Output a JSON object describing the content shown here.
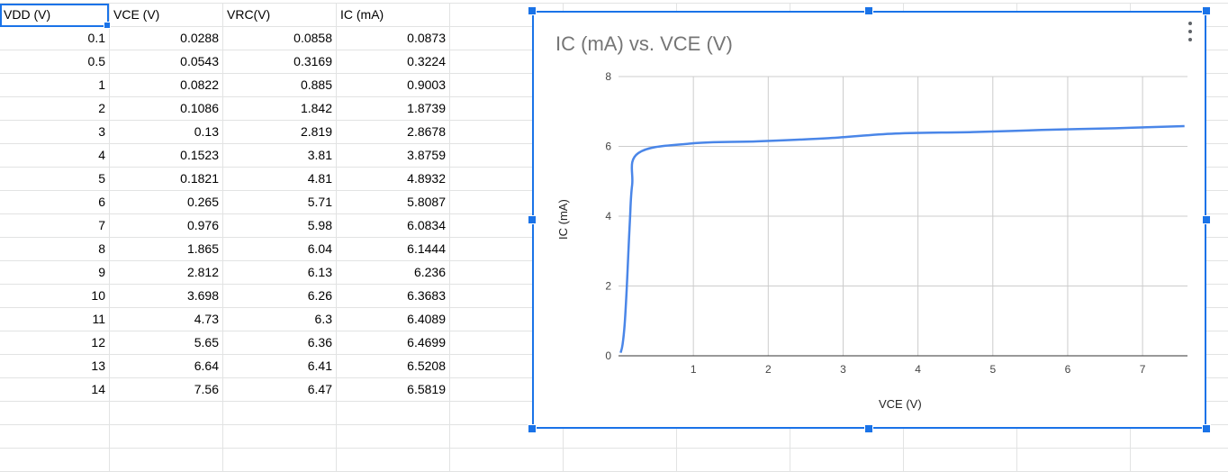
{
  "sheet": {
    "headers": [
      "VDD (V)",
      "VCE (V)",
      "VRC(V)",
      "IC (mA)"
    ],
    "rows": [
      [
        "0.1",
        "0.0288",
        "0.0858",
        "0.0873"
      ],
      [
        "0.5",
        "0.0543",
        "0.3169",
        "0.3224"
      ],
      [
        "1",
        "0.0822",
        "0.885",
        "0.9003"
      ],
      [
        "2",
        "0.1086",
        "1.842",
        "1.8739"
      ],
      [
        "3",
        "0.13",
        "2.819",
        "2.8678"
      ],
      [
        "4",
        "0.1523",
        "3.81",
        "3.8759"
      ],
      [
        "5",
        "0.1821",
        "4.81",
        "4.8932"
      ],
      [
        "6",
        "0.265",
        "5.71",
        "5.8087"
      ],
      [
        "7",
        "0.976",
        "5.98",
        "6.0834"
      ],
      [
        "8",
        "1.865",
        "6.04",
        "6.1444"
      ],
      [
        "9",
        "2.812",
        "6.13",
        "6.236"
      ],
      [
        "10",
        "3.698",
        "6.26",
        "6.3683"
      ],
      [
        "11",
        "4.73",
        "6.3",
        "6.4089"
      ],
      [
        "12",
        "5.65",
        "6.36",
        "6.4699"
      ],
      [
        "13",
        "6.64",
        "6.41",
        "6.5208"
      ],
      [
        "14",
        "7.56",
        "6.47",
        "6.5819"
      ]
    ]
  },
  "colors": {
    "selection": "#1a73e8",
    "series": "#4a86e8",
    "gridline": "#cccccc",
    "title": "#757575"
  },
  "chart_data": {
    "type": "line",
    "title": "IC (mA) vs. VCE (V)",
    "xlabel": "VCE (V)",
    "ylabel": "IC (mA)",
    "series": [
      {
        "x": [
          0.0288,
          0.0543,
          0.0822,
          0.1086,
          0.13,
          0.1523,
          0.1821,
          0.265,
          0.976,
          1.865,
          2.812,
          3.698,
          4.73,
          5.65,
          6.64,
          7.56
        ],
        "values": [
          0.0873,
          0.3224,
          0.9003,
          1.8739,
          2.8678,
          3.8759,
          4.8932,
          5.8087,
          6.0834,
          6.1444,
          6.236,
          6.3683,
          6.4089,
          6.4699,
          6.5208,
          6.5819
        ]
      }
    ],
    "xticks": [
      "1",
      "2",
      "3",
      "4",
      "5",
      "6",
      "7"
    ],
    "yticks": [
      "0",
      "2",
      "4",
      "6",
      "8"
    ],
    "xlim": [
      0,
      7.6
    ],
    "ylim": [
      0,
      8
    ],
    "grid": true,
    "legend": "none"
  }
}
